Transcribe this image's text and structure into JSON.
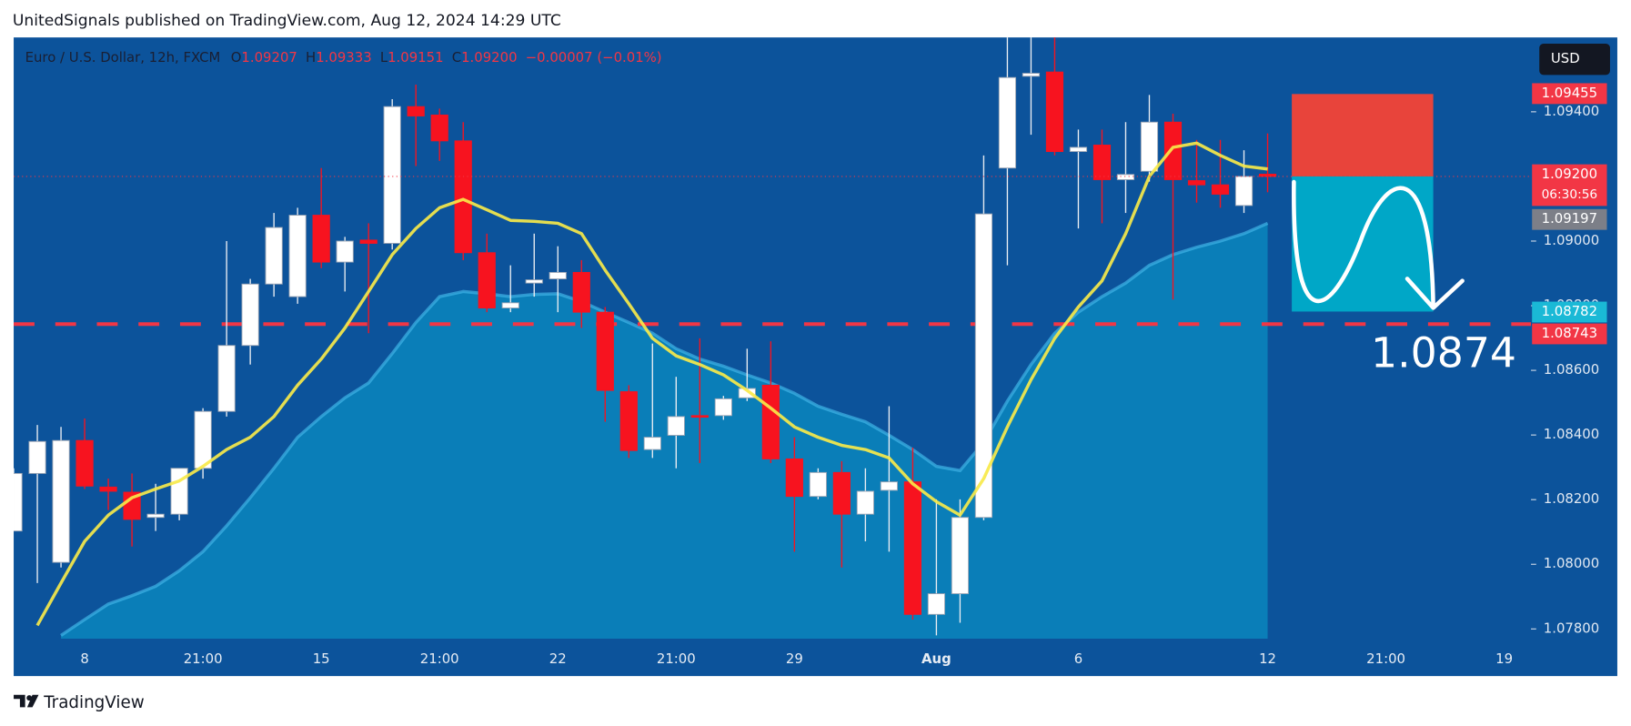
{
  "page_title": "UnitedSignals published on TradingView.com, Aug 12, 2024 14:29 UTC",
  "footer_brand": "TradingView",
  "currency_button": "USD",
  "chart_data": {
    "type": "candlestick",
    "legend_header": {
      "symbol": "Euro / U.S. Dollar, 12h, FXCM",
      "open_key": "O",
      "open": "1.09207",
      "high_key": "H",
      "high": "1.09333",
      "low_key": "L",
      "low": "1.09151",
      "close_key": "C",
      "close": "1.09200",
      "change": "−0.00007 (−0.01%)"
    },
    "categories": [
      null,
      null,
      null,
      "8",
      null,
      null,
      null,
      null,
      "21:00",
      null,
      null,
      null,
      null,
      "15",
      null,
      null,
      null,
      null,
      "21:00",
      null,
      null,
      null,
      null,
      "22",
      null,
      null,
      null,
      null,
      "21:00",
      null,
      null,
      null,
      null,
      "29",
      null,
      null,
      null,
      null,
      null,
      "Aug",
      null,
      null,
      null,
      null,
      null,
      "6",
      null,
      null,
      null,
      null,
      null,
      null,
      null,
      "12",
      null,
      null,
      null,
      null,
      "21:00",
      null,
      null,
      null,
      null,
      "19"
    ],
    "open": [
      1.08103,
      1.08281,
      1.08006,
      1.08383,
      1.08239,
      1.08223,
      1.08145,
      1.08155,
      1.08297,
      1.08473,
      1.08677,
      1.08867,
      1.08828,
      1.0908,
      1.08935,
      1.09003,
      1.08993,
      1.09416,
      1.0939,
      1.0931,
      1.08964,
      1.08793,
      1.0887,
      1.08883,
      1.08903,
      1.0878,
      1.08534,
      1.08355,
      1.08399,
      1.0846,
      1.0846,
      1.08515,
      1.08554,
      1.08326,
      1.0821,
      1.08284,
      1.08155,
      1.08229,
      1.08255,
      1.07845,
      1.07909,
      1.08145,
      1.09226,
      1.0951,
      1.09523,
      1.09277,
      1.09297,
      1.0919,
      1.09216,
      1.09368,
      1.09187,
      1.09174,
      1.0911,
      1.09207,
      null,
      null,
      null,
      null,
      null,
      null,
      null,
      null,
      null,
      null
    ],
    "high": [
      1.08297,
      1.08431,
      1.08425,
      1.08451,
      1.08265,
      1.08281,
      1.08249,
      1.08297,
      1.08483,
      1.09,
      1.08883,
      1.09087,
      1.09103,
      1.09226,
      1.09013,
      1.09055,
      1.09439,
      1.09484,
      1.0941,
      1.09368,
      1.09023,
      1.08925,
      1.09023,
      1.08984,
      1.08941,
      1.08796,
      1.08554,
      1.08683,
      1.0858,
      1.08699,
      1.08521,
      1.08667,
      1.0869,
      1.08393,
      1.08297,
      1.08319,
      1.08297,
      1.08489,
      1.08361,
      1.08201,
      1.08201,
      1.09265,
      1.097,
      1.09632,
      1.09632,
      1.09345,
      1.09345,
      1.09368,
      1.09452,
      1.09394,
      1.09313,
      1.09313,
      1.09281,
      1.09333,
      null,
      null,
      null,
      null,
      null,
      null,
      null,
      null,
      null,
      null
    ],
    "low": [
      1.08103,
      1.07942,
      1.0799,
      1.08233,
      1.08168,
      1.08055,
      1.08103,
      1.08136,
      1.08265,
      1.08457,
      1.08618,
      1.08828,
      1.08806,
      1.08916,
      1.08844,
      1.08715,
      1.08974,
      1.09232,
      1.09248,
      1.08941,
      1.0878,
      1.0878,
      1.08828,
      1.0878,
      1.08731,
      1.08441,
      1.08329,
      1.08329,
      1.08297,
      1.08313,
      1.08447,
      1.08505,
      1.08313,
      1.08039,
      1.08201,
      1.0799,
      1.08071,
      1.08039,
      1.07829,
      1.0778,
      1.07819,
      1.08136,
      1.08925,
      1.09329,
      1.09265,
      1.09039,
      1.09055,
      1.09087,
      1.09184,
      1.08819,
      1.09119,
      1.09103,
      1.09087,
      1.09151,
      null,
      null,
      null,
      null,
      null,
      null,
      null,
      null,
      null,
      null
    ],
    "close": [
      1.08281,
      1.0838,
      1.08383,
      1.08242,
      1.08226,
      1.08139,
      1.08155,
      1.08297,
      1.08473,
      1.08677,
      1.08867,
      1.09042,
      1.0908,
      1.08935,
      1.09,
      1.08993,
      1.09416,
      1.09387,
      1.0931,
      1.08964,
      1.08793,
      1.08809,
      1.0888,
      1.08903,
      1.0878,
      1.08538,
      1.08352,
      1.08393,
      1.08457,
      1.08457,
      1.08512,
      1.08544,
      1.08326,
      1.0821,
      1.08284,
      1.08155,
      1.08226,
      1.08255,
      1.07845,
      1.07909,
      1.08145,
      1.09084,
      1.09506,
      1.09519,
      1.09277,
      1.0929,
      1.0919,
      1.09206,
      1.09368,
      1.0919,
      1.09174,
      1.09145,
      1.092,
      1.092,
      null,
      null,
      null,
      null,
      null,
      null,
      null,
      null,
      null,
      null
    ],
    "up_color": "#ffffff",
    "down_color": "#f7131f",
    "series": [
      {
        "style": "area",
        "color": "#0a8cc2",
        "values": [
          null,
          null,
          1.0778,
          1.07829,
          1.07877,
          1.07903,
          1.07932,
          1.0798,
          1.08039,
          1.08119,
          1.08206,
          1.08297,
          1.08393,
          1.08457,
          1.08515,
          1.08561,
          1.08652,
          1.08748,
          1.08828,
          1.08844,
          1.08837,
          1.08828,
          1.08835,
          1.08837,
          1.08813,
          1.0878,
          1.08748,
          1.08715,
          1.08667,
          1.08635,
          1.08613,
          1.08586,
          1.08561,
          1.08529,
          1.08489,
          1.08464,
          1.08441,
          1.08399,
          1.08355,
          1.08303,
          1.0829,
          1.08377,
          1.08505,
          1.08618,
          1.08715,
          1.0878,
          1.08828,
          1.0887,
          1.08925,
          1.08958,
          1.08981,
          1.09,
          1.09023,
          1.09055,
          null,
          null,
          null,
          null,
          null,
          null,
          null,
          null,
          null,
          null
        ]
      },
      {
        "style": "line",
        "color": "#f7e94a",
        "values": [
          null,
          1.07811,
          1.07942,
          1.08071,
          1.08152,
          1.08206,
          1.08233,
          1.08258,
          1.08303,
          1.08355,
          1.08393,
          1.08457,
          1.08554,
          1.08635,
          1.08731,
          1.08844,
          1.08958,
          1.09039,
          1.09103,
          1.09129,
          1.09097,
          1.09064,
          1.09061,
          1.09055,
          1.09023,
          1.0891,
          1.08806,
          1.08699,
          1.08645,
          1.08618,
          1.08586,
          1.08538,
          1.08483,
          1.08425,
          1.08393,
          1.08368,
          1.08355,
          1.08329,
          1.08249,
          1.08194,
          1.08152,
          1.08265,
          1.08425,
          1.08571,
          1.08699,
          1.08796,
          1.08877,
          1.09023,
          1.092,
          1.0929,
          1.09303,
          1.09265,
          1.09232,
          1.09223,
          null,
          null,
          null,
          null,
          null,
          null,
          null,
          null,
          null,
          null
        ]
      }
    ],
    "ylim": [
      1.0777,
      1.0963
    ],
    "yticks": [
      {
        "value": 1.078,
        "label": "1.07800"
      },
      {
        "value": 1.08,
        "label": "1.08000"
      },
      {
        "value": 1.082,
        "label": "1.08200"
      },
      {
        "value": 1.084,
        "label": "1.08400"
      },
      {
        "value": 1.086,
        "label": "1.08600"
      },
      {
        "value": 1.088,
        "label": "1.08800"
      },
      {
        "value": 1.09,
        "label": "1.09000"
      },
      {
        "value": 1.094,
        "label": "1.09400"
      }
    ],
    "grid": false,
    "price_labels": [
      {
        "value": 1.09455,
        "color": "#f23645"
      },
      {
        "value": 1.092,
        "label": "1.09200",
        "color": "#f23645",
        "countdown": "06:30:56"
      },
      {
        "value": 1.09197,
        "color": "#7c7f88"
      },
      {
        "value": 1.08782,
        "color": "#1ab9d6"
      },
      {
        "value": 1.08743,
        "color": "#f23645"
      }
    ],
    "dashed_level": 1.08743,
    "dashed_color": "#f23645",
    "position_box": {
      "top": 1.09455,
      "split": 1.092,
      "bottom": 1.08782,
      "risk_color": "#f44336",
      "reward_color": "#00acc9"
    },
    "annotation": "1.0874"
  }
}
